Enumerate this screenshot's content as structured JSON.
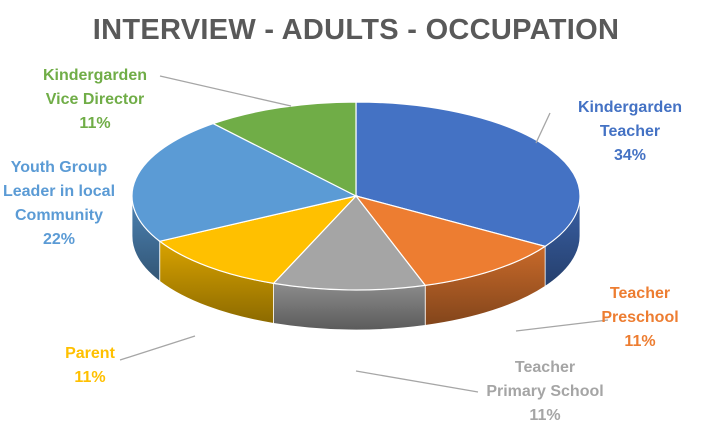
{
  "chart_data": {
    "type": "pie",
    "title": "INTERVIEW - ADULTS - OCCUPATION",
    "categories": [
      "Kindergarden Teacher",
      "Teacher Preschool",
      "Teacher Primary School",
      "Parent",
      "Youth Group Leader in local Community",
      "Kindergarden Vice Director"
    ],
    "values": [
      34,
      11,
      11,
      11,
      22,
      11
    ],
    "value_labels": [
      "34%",
      "11%",
      "11%",
      "11%",
      "22%",
      "11%"
    ],
    "label_lines": [
      [
        "Kindergarden",
        "Teacher"
      ],
      [
        "Teacher",
        "Preschool"
      ],
      [
        "Teacher",
        "Primary School"
      ],
      [
        "Parent"
      ],
      [
        "Youth Group",
        "Leader in local",
        "Community"
      ],
      [
        "Kindergarden",
        "Vice Director"
      ]
    ],
    "colors": [
      "#4472C4",
      "#ED7D31",
      "#A5A5A5",
      "#FFC000",
      "#5B9BD5",
      "#70AD47"
    ],
    "label_colors": [
      "#4472C4",
      "#ED7D31",
      "#A5A5A5",
      "#FFC000",
      "#5B9BD5",
      "#70AD47"
    ],
    "style": "3d-pie",
    "legend": "none"
  }
}
